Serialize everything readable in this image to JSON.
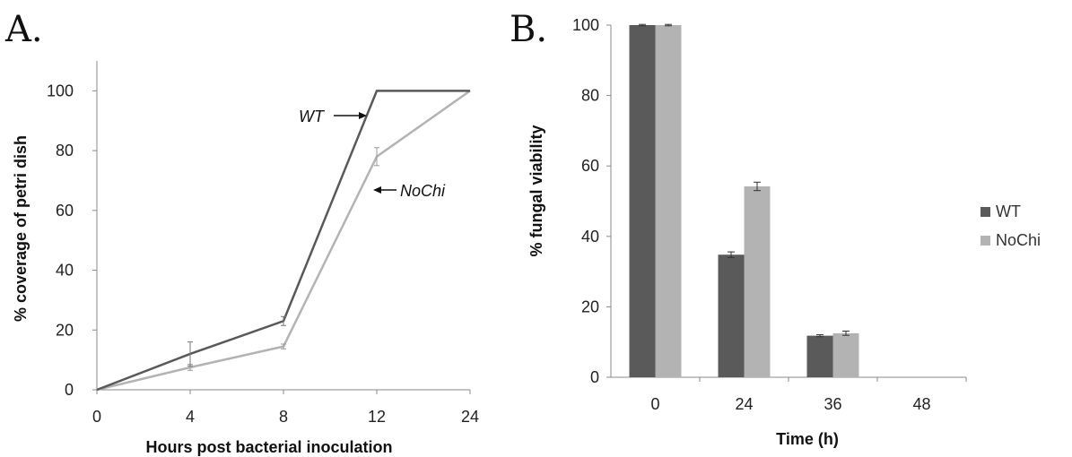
{
  "chart_data": [
    {
      "panel_label": "A.",
      "type": "line",
      "categories": [
        "0",
        "4",
        "8",
        "12",
        "24"
      ],
      "series": [
        {
          "name": "WT",
          "color": "#595959",
          "values": [
            0,
            12,
            23,
            100,
            100
          ],
          "error": [
            0,
            4,
            1.5,
            0,
            0
          ]
        },
        {
          "name": "NoChi",
          "color": "#b3b3b3",
          "values": [
            0,
            7.5,
            14.5,
            78,
            100
          ],
          "error": [
            0,
            1,
            0.8,
            3,
            0
          ]
        }
      ],
      "annotations": [
        "WT",
        "NoChi"
      ],
      "xlabel": "Hours post bacterial inoculation",
      "ylabel": "% coverage of petri  dish",
      "ylim": [
        0,
        110
      ],
      "yticks": [
        0,
        20,
        40,
        60,
        80,
        100
      ],
      "grid": false
    },
    {
      "panel_label": "B.",
      "type": "bar",
      "categories": [
        "0",
        "24",
        "36",
        "48"
      ],
      "series": [
        {
          "name": "WT",
          "color": "#5a5a5a",
          "values": [
            100,
            34.8,
            11.8,
            0
          ],
          "error": [
            0.2,
            0.8,
            0.3,
            0
          ]
        },
        {
          "name": "NoChi",
          "color": "#b3b3b3",
          "values": [
            100,
            54.2,
            12.5,
            0
          ],
          "error": [
            0.2,
            1.2,
            0.6,
            0
          ]
        }
      ],
      "xlabel": "Time (h)",
      "ylabel": "% fungal viability",
      "ylim": [
        0,
        100
      ],
      "yticks": [
        0,
        20,
        40,
        60,
        80,
        100
      ],
      "legend": [
        "WT",
        "NoChi"
      ],
      "legend_position": "right",
      "grid": false
    }
  ]
}
